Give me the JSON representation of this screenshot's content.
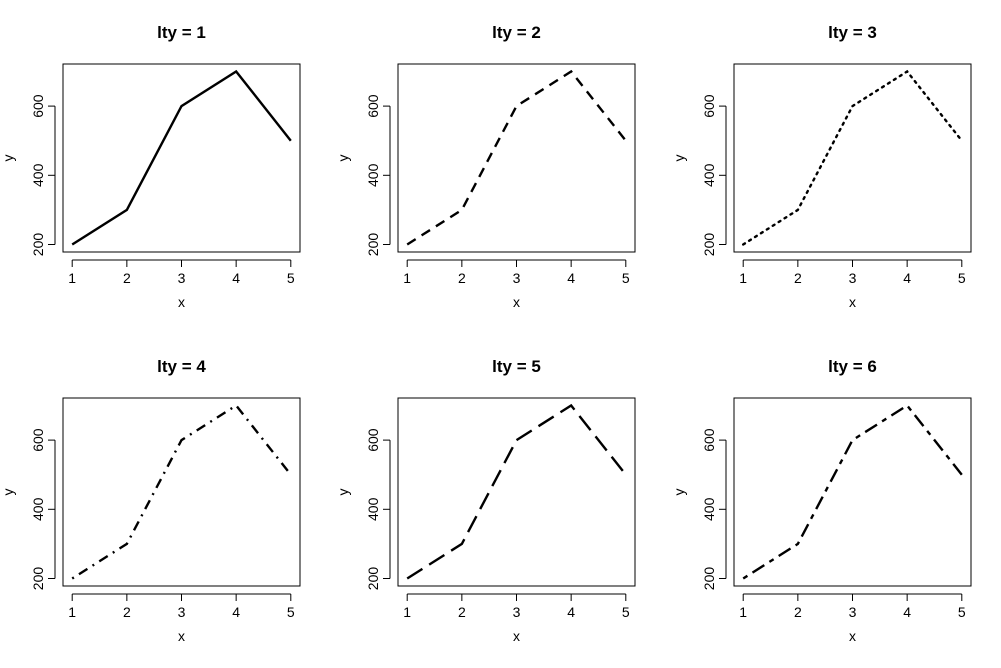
{
  "chart_data": [
    {
      "type": "line",
      "title": "lty = 1",
      "xlabel": "x",
      "ylabel": "y",
      "x": [
        1,
        2,
        3,
        4,
        5
      ],
      "y": [
        200,
        300,
        600,
        700,
        500
      ],
      "xticks": [
        "1",
        "2",
        "3",
        "4",
        "5"
      ],
      "yticks": [
        "200",
        "400",
        "600"
      ],
      "line_style": "solid",
      "line_color": "#000000",
      "grid": false
    },
    {
      "type": "line",
      "title": "lty = 2",
      "xlabel": "x",
      "ylabel": "y",
      "x": [
        1,
        2,
        3,
        4,
        5
      ],
      "y": [
        200,
        300,
        600,
        700,
        500
      ],
      "xticks": [
        "1",
        "2",
        "3",
        "4",
        "5"
      ],
      "yticks": [
        "200",
        "400",
        "600"
      ],
      "line_style": "dashed",
      "line_color": "#000000",
      "grid": false
    },
    {
      "type": "line",
      "title": "lty = 3",
      "xlabel": "x",
      "ylabel": "y",
      "x": [
        1,
        2,
        3,
        4,
        5
      ],
      "y": [
        200,
        300,
        600,
        700,
        500
      ],
      "xticks": [
        "1",
        "2",
        "3",
        "4",
        "5"
      ],
      "yticks": [
        "200",
        "400",
        "600"
      ],
      "line_style": "dotted",
      "line_color": "#000000",
      "grid": false
    },
    {
      "type": "line",
      "title": "lty = 4",
      "xlabel": "x",
      "ylabel": "y",
      "x": [
        1,
        2,
        3,
        4,
        5
      ],
      "y": [
        200,
        300,
        600,
        700,
        500
      ],
      "xticks": [
        "1",
        "2",
        "3",
        "4",
        "5"
      ],
      "yticks": [
        "200",
        "400",
        "600"
      ],
      "line_style": "dotdash",
      "line_color": "#000000",
      "grid": false
    },
    {
      "type": "line",
      "title": "lty = 5",
      "xlabel": "x",
      "ylabel": "y",
      "x": [
        1,
        2,
        3,
        4,
        5
      ],
      "y": [
        200,
        300,
        600,
        700,
        500
      ],
      "xticks": [
        "1",
        "2",
        "3",
        "4",
        "5"
      ],
      "yticks": [
        "200",
        "400",
        "600"
      ],
      "line_style": "longdash",
      "line_color": "#000000",
      "grid": false
    },
    {
      "type": "line",
      "title": "lty = 6",
      "xlabel": "x",
      "ylabel": "y",
      "x": [
        1,
        2,
        3,
        4,
        5
      ],
      "y": [
        200,
        300,
        600,
        700,
        500
      ],
      "xticks": [
        "1",
        "2",
        "3",
        "4",
        "5"
      ],
      "yticks": [
        "200",
        "400",
        "600"
      ],
      "line_style": "twodash",
      "line_color": "#000000",
      "grid": false
    }
  ]
}
